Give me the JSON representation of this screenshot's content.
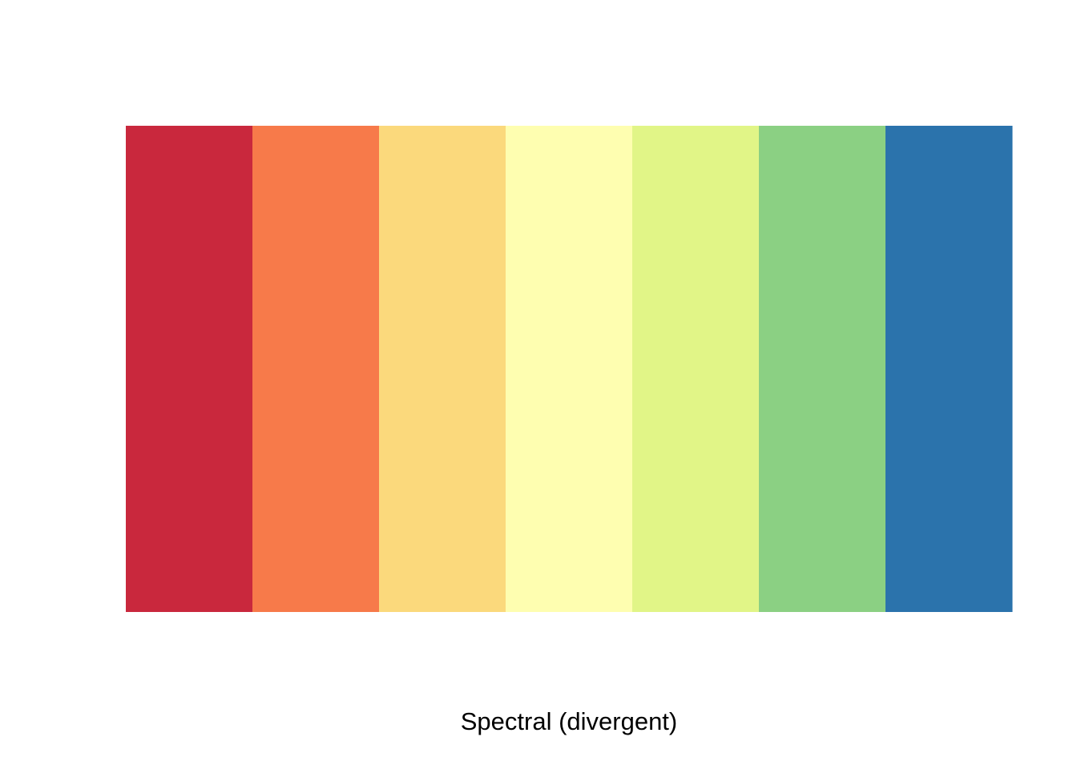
{
  "chart_data": {
    "type": "heatmap",
    "palette_name": "Spectral",
    "colors": [
      "#C9283D",
      "#F77A4A",
      "#FBD97C",
      "#FEFEB0",
      "#E1F587",
      "#8BD083",
      "#2B73AC"
    ],
    "xlabel": "Spectral (divergent)",
    "title": "",
    "grid": false,
    "legend": "none"
  }
}
